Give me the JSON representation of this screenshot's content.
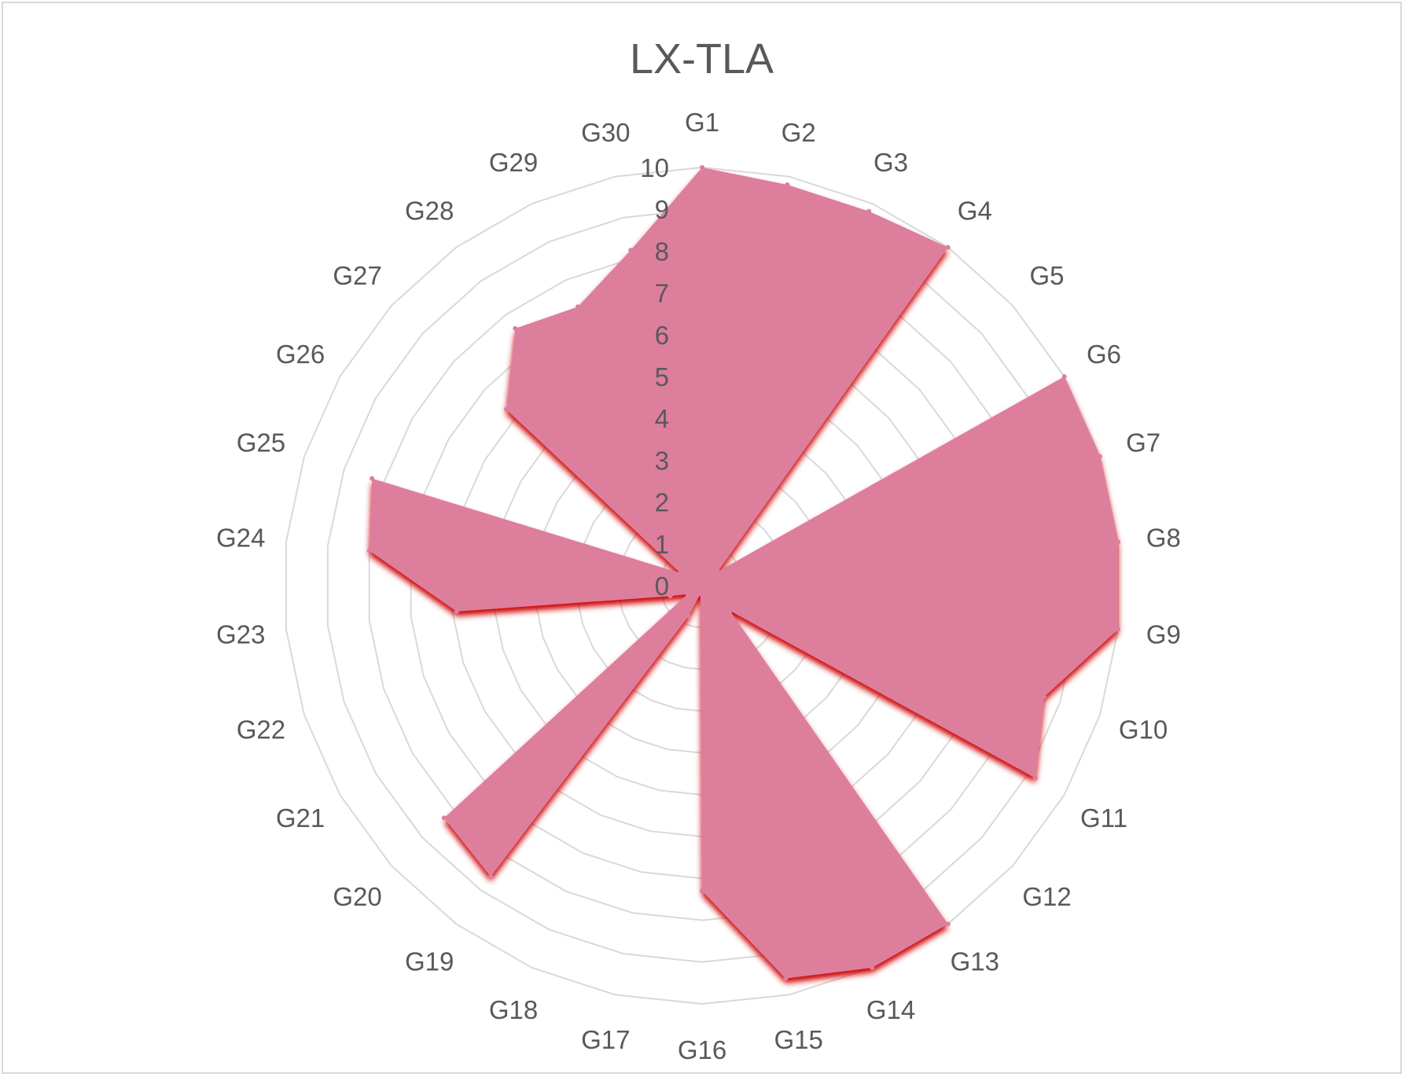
{
  "chart_data": {
    "type": "radar",
    "title": "LX-TLA",
    "categories": [
      "G1",
      "G2",
      "G3",
      "G4",
      "G5",
      "G6",
      "G7",
      "G8",
      "G9",
      "G10",
      "G11",
      "G12",
      "G13",
      "G14",
      "G15",
      "G16",
      "G17",
      "G18",
      "G19",
      "G20",
      "G21",
      "G22",
      "G23",
      "G24",
      "G25",
      "G26",
      "G27",
      "G28",
      "G29",
      "G30"
    ],
    "series": [
      {
        "values": [
          10,
          9.8,
          9.8,
          10,
          0.5,
          10,
          10,
          10,
          10,
          8.6,
          9.2,
          0.9,
          10,
          10,
          9.6,
          7.3,
          0.2,
          0.8,
          8.6,
          8.3,
          0.4,
          0.8,
          5.9,
          8,
          8.3,
          0.6,
          6.3,
          7.6,
          7.3,
          8.2
        ],
        "color": "#dd7e9c"
      }
    ],
    "ylim": [
      0,
      10
    ],
    "ticks": [
      "0",
      "1",
      "2",
      "3",
      "4",
      "5",
      "6",
      "7",
      "8",
      "9",
      "10"
    ],
    "grid": true,
    "colors": {
      "fill": "#dd7e9c",
      "shadow": "#cc0000",
      "grid": "#d9d9d9",
      "text": "#595959"
    }
  }
}
